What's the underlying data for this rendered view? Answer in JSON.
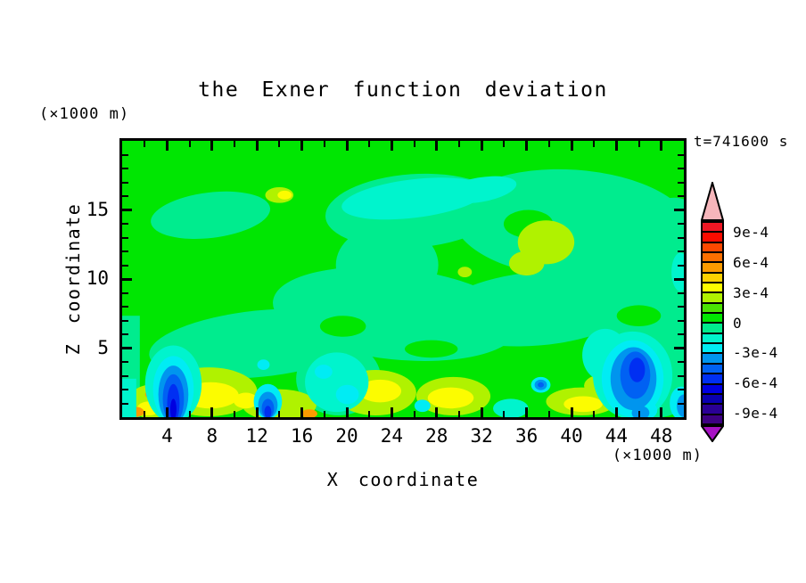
{
  "title": "the Exner function deviation",
  "timestamp": "t=741600 s",
  "axes": {
    "x": {
      "label": "X coordinate",
      "unit": "(×1000 m)",
      "range": [
        0,
        50
      ],
      "major_ticks": [
        4,
        8,
        12,
        16,
        20,
        24,
        28,
        32,
        36,
        40,
        44,
        48
      ],
      "minor_step": 2
    },
    "y": {
      "label": "Z coordinate",
      "unit": "(×1000 m)",
      "range": [
        0,
        20
      ],
      "major_ticks": [
        5,
        10,
        15
      ],
      "minor_step": 1
    }
  },
  "palette": {
    "red1": "#ee1724",
    "red2": "#fa0c00",
    "orangered": "#fc4800",
    "orange2": "#fc6f00",
    "orange": "#fc9b00",
    "gold": "#fcd100",
    "yellow": "#fcfc00",
    "chartreuse": "#b0f200",
    "green2": "#4ae303",
    "green": "#00e602",
    "springgreen": "#00ec8e",
    "aquamarine": "#00f4cd",
    "cyan": "#00ecf4",
    "skyblue": "#0095ee",
    "blue": "#0061f3",
    "blue2": "#002ff2",
    "darkblue": "#0000e0",
    "navy": "#0a00b0",
    "indigo": "#2a0096",
    "violet": "#3d0082",
    "pink": "#f6b6bb",
    "magenta": "#a712c4"
  },
  "colorbar": {
    "segment_colors_top_to_bottom": [
      "red1",
      "red2",
      "orangered",
      "orange2",
      "orange",
      "gold",
      "yellow",
      "chartreuse",
      "green2",
      "green",
      "springgreen",
      "aquamarine",
      "cyan",
      "skyblue",
      "blue",
      "blue2",
      "darkblue",
      "navy",
      "indigo",
      "violet"
    ],
    "arrow_top_color": "pink",
    "arrow_bottom_color": "magenta",
    "labels": [
      "9e-4",
      "6e-4",
      "3e-4",
      "0",
      "-3e-4",
      "-6e-4",
      "-9e-4"
    ],
    "label_boundary_indices": [
      1,
      4,
      7,
      10,
      13,
      16,
      19
    ]
  },
  "chart_data": {
    "type": "heatmap",
    "title": "the Exner function deviation",
    "xlabel": "X coordinate",
    "x_unit": "×1000 m",
    "x_range": [
      0,
      50
    ],
    "ylabel": "Z coordinate",
    "y_unit": "×1000 m",
    "y_range": [
      0,
      20
    ],
    "time_label": "t=741600 s",
    "contour_levels": {
      "min": -0.001,
      "max": 0.001,
      "interval": 0.0001
    },
    "colorbar_tick_labels": [
      "9e-4",
      "6e-4",
      "3e-4",
      "0",
      "-3e-4",
      "-6e-4",
      "-9e-4"
    ],
    "field_description": {
      "background": "Deviation close to 0..+1e-4 (green) over most of the domain above z≈5 km",
      "negative_mid_level": "Patches of -1e-4..0 (spring green) through mid-levels, upper right quadrant, and a -2e-4 (aquamarine) pocket near x=20-30, z=14-17",
      "positive_mid_level": "+1e-4..+2e-4 (yellow-green) patches near x=36-40 z=11-14 and a small one near x=14 z=16",
      "boundary_layer": "Strong mixed anomalies below z≈4 km: yellow/orange positive cells and deep blue negative plumes",
      "minima": [
        {
          "x": 4.6,
          "z": 1.3,
          "value": -0.0005
        },
        {
          "x": 13.0,
          "z": 0.8,
          "value": -0.0004
        },
        {
          "x": 37.3,
          "z": 2.3,
          "value": -0.0003
        },
        {
          "x": 45.6,
          "z": 2.8,
          "value": -0.0005
        }
      ],
      "maxima": [
        {
          "x": 1.2,
          "z": 0.3,
          "value": 0.0004
        },
        {
          "x": 7.9,
          "z": 1.5,
          "value": 0.0003
        },
        {
          "x": 23.0,
          "z": 1.8,
          "value": 0.0002
        },
        {
          "x": 29.5,
          "z": 1.5,
          "value": 0.0002
        },
        {
          "x": 41.0,
          "z": 1.0,
          "value": 0.0002
        }
      ]
    }
  }
}
